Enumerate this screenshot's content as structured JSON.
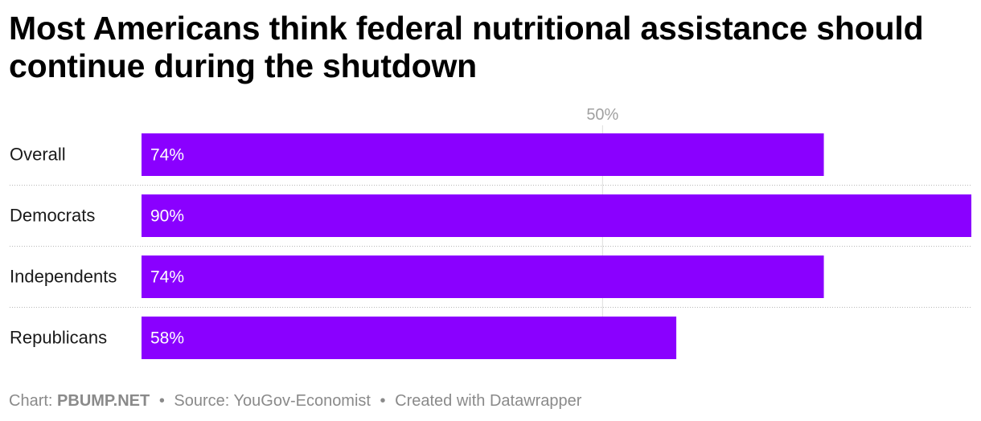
{
  "title": "Most Americans think federal nutritional assistance should continue during the shutdown",
  "chart_data": {
    "type": "bar",
    "orientation": "horizontal",
    "categories": [
      "Overall",
      "Democrats",
      "Independents",
      "Republicans"
    ],
    "values": [
      74,
      90,
      74,
      58
    ],
    "value_labels": [
      "74%",
      "90%",
      "74%",
      "58%"
    ],
    "xlim": [
      0,
      90
    ],
    "reference_line": {
      "value": 50,
      "label": "50%"
    },
    "bar_color": "#8a00ff",
    "grid": false
  },
  "footer": {
    "chart_prefix": "Chart:",
    "chart_credit": "PBUMP.NET",
    "separator": "•",
    "source": "Source: YouGov-Economist",
    "created": "Created with Datawrapper"
  }
}
